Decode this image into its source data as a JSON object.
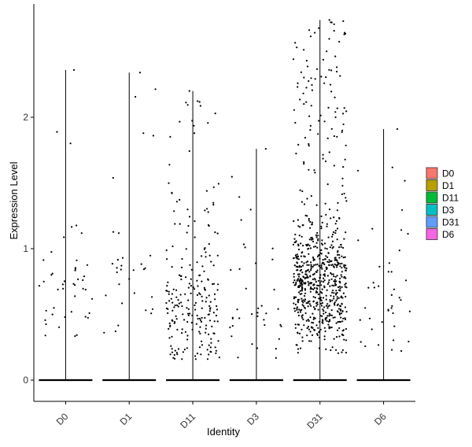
{
  "chart_data": {
    "type": "scatter",
    "subtype": "violin-jitter",
    "xlabel": "Identity",
    "ylabel": "Expression Level",
    "categories": [
      "D0",
      "D1",
      "D11",
      "D3",
      "D31",
      "D6"
    ],
    "ylim": [
      -0.15,
      2.8
    ],
    "yticks": [
      0,
      1,
      2
    ],
    "grid": false,
    "legend": {
      "placement": "right",
      "entries": [
        {
          "label": "D0",
          "color": "#F8766D"
        },
        {
          "label": "D1",
          "color": "#B79F00"
        },
        {
          "label": "D11",
          "color": "#00BA38"
        },
        {
          "label": "D3",
          "color": "#00BFC4"
        },
        {
          "label": "D31",
          "color": "#619CFF"
        },
        {
          "label": "D6",
          "color": "#F564E3"
        }
      ]
    },
    "series": [
      {
        "category": "D0",
        "max": 2.36,
        "n_nonzero": 45,
        "spread": [
          0.2,
          2.36
        ],
        "center": 0.5
      },
      {
        "category": "D1",
        "max": 2.34,
        "n_nonzero": 32,
        "spread": [
          0.2,
          2.34
        ],
        "center": 0.6
      },
      {
        "category": "D11",
        "max": 2.2,
        "n_nonzero": 230,
        "spread": [
          0.16,
          2.2
        ],
        "center": 0.4
      },
      {
        "category": "D3",
        "max": 1.76,
        "n_nonzero": 38,
        "spread": [
          0.15,
          1.76
        ],
        "center": 0.5
      },
      {
        "category": "D31",
        "max": 2.74,
        "n_nonzero": 720,
        "spread": [
          0.2,
          2.74
        ],
        "center": 0.6
      },
      {
        "category": "D6",
        "max": 1.91,
        "n_nonzero": 42,
        "spread": [
          0.2,
          1.91
        ],
        "center": 0.5
      }
    ]
  }
}
